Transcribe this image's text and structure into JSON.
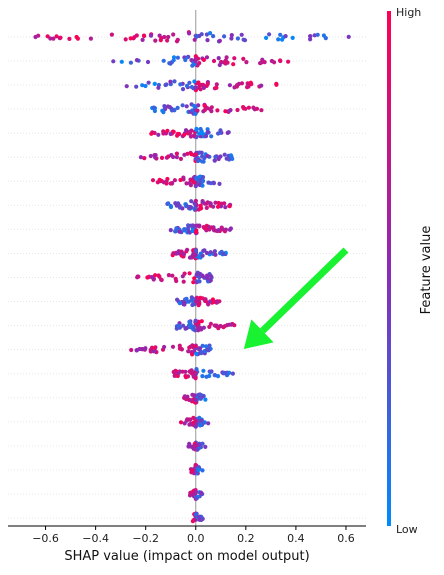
{
  "chart_data": {
    "type": "scatter",
    "title": "",
    "xlabel": "SHAP value (impact on model output)",
    "ylabel": "",
    "xlim": [
      -0.75,
      0.68
    ],
    "xticks": [
      -0.6,
      -0.4,
      -0.2,
      0.0,
      0.2,
      0.4,
      0.6
    ],
    "xtick_labels": [
      "−0.6",
      "−0.4",
      "−0.2",
      "0.0",
      "0.2",
      "0.4",
      "0.6"
    ],
    "grid": false,
    "feature_rows": 21,
    "colorbar": {
      "label": "Feature value",
      "high_label": "High",
      "low_label": "Low",
      "high_color": "#ff0052",
      "low_color": "#008bfb"
    },
    "annotation": {
      "type": "arrow",
      "color": "#19f230",
      "from": [
        0.6,
        19.5
      ],
      "to": [
        0.2,
        16.6
      ]
    },
    "rows": [
      {
        "min": -0.69,
        "max": 0.62,
        "n": 70,
        "skew": "pos-blue"
      },
      {
        "min": -0.34,
        "max": 0.38,
        "n": 60,
        "skew": "pos-red"
      },
      {
        "min": -0.28,
        "max": 0.34,
        "n": 55,
        "skew": "pos-red"
      },
      {
        "min": -0.2,
        "max": 0.28,
        "n": 55,
        "skew": "pos-red"
      },
      {
        "min": -0.19,
        "max": 0.14,
        "n": 55,
        "skew": "neg-red"
      },
      {
        "min": -0.24,
        "max": 0.15,
        "n": 55,
        "skew": "neg-red"
      },
      {
        "min": -0.18,
        "max": 0.1,
        "n": 55,
        "skew": "neg-red"
      },
      {
        "min": -0.12,
        "max": 0.15,
        "n": 55,
        "skew": "pos-red"
      },
      {
        "min": -0.1,
        "max": 0.15,
        "n": 55,
        "skew": "pos-red"
      },
      {
        "min": -0.1,
        "max": 0.12,
        "n": 55,
        "skew": "neg-red"
      },
      {
        "min": -0.24,
        "max": 0.08,
        "n": 50,
        "skew": "neg-red"
      },
      {
        "min": -0.08,
        "max": 0.1,
        "n": 45,
        "skew": "pos-red"
      },
      {
        "min": -0.08,
        "max": 0.17,
        "n": 50,
        "skew": "pos-red"
      },
      {
        "min": -0.26,
        "max": 0.06,
        "n": 55,
        "skew": "neg-red"
      },
      {
        "min": -0.09,
        "max": 0.15,
        "n": 55,
        "skew": "neg-red"
      },
      {
        "min": -0.05,
        "max": 0.04,
        "n": 35,
        "skew": "neg-red"
      },
      {
        "min": -0.06,
        "max": 0.05,
        "n": 35,
        "skew": "neg-red"
      },
      {
        "min": -0.03,
        "max": 0.04,
        "n": 30,
        "skew": "neg-red"
      },
      {
        "min": -0.02,
        "max": 0.03,
        "n": 25,
        "skew": "neg-red"
      },
      {
        "min": -0.03,
        "max": 0.03,
        "n": 25,
        "skew": "neg-red"
      },
      {
        "min": -0.02,
        "max": 0.03,
        "n": 25,
        "skew": "neg-red"
      }
    ]
  }
}
